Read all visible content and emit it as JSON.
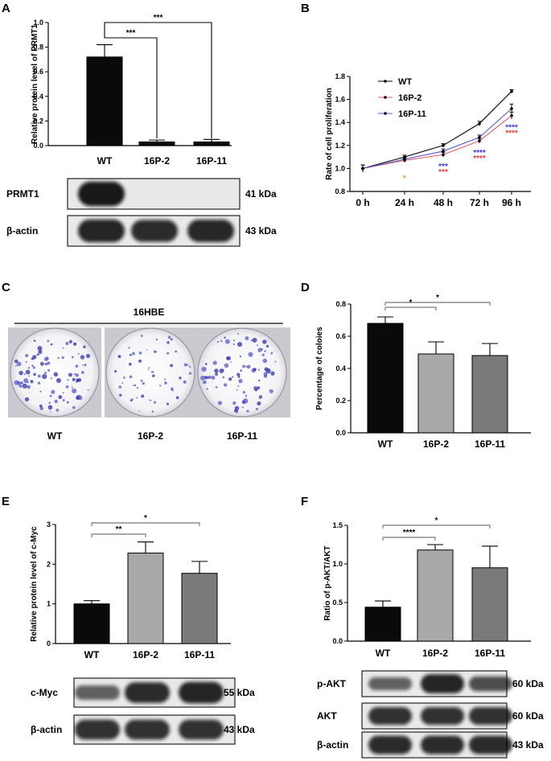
{
  "panels": {
    "A": {
      "label": "A"
    },
    "B": {
      "label": "B"
    },
    "C": {
      "label": "C",
      "title": "16HBE",
      "dishes": [
        "WT",
        "16P-2",
        "16P-11"
      ]
    },
    "D": {
      "label": "D"
    },
    "E": {
      "label": "E"
    },
    "F": {
      "label": "F"
    }
  },
  "blots": {
    "A": [
      {
        "label": "PRMT1",
        "kda": "41 kDa",
        "intensity": [
          1.0,
          0.05,
          0.03
        ]
      },
      {
        "label": "β-actin",
        "kda": "43 kDa",
        "intensity": [
          0.9,
          0.85,
          0.88
        ]
      }
    ],
    "E": [
      {
        "label": "c-Myc",
        "kda": "55 kDa",
        "intensity": [
          0.45,
          0.85,
          0.9
        ]
      },
      {
        "label": "β-actin",
        "kda": "43 kDa",
        "intensity": [
          0.8,
          0.8,
          0.8
        ]
      }
    ],
    "F": [
      {
        "label": "p-AKT",
        "kda": "60 kDa",
        "intensity": [
          0.45,
          0.9,
          0.6
        ]
      },
      {
        "label": "AKT",
        "kda": "60 kDa",
        "intensity": [
          0.8,
          0.8,
          0.8
        ]
      },
      {
        "label": "β-actin",
        "kda": "43 kDa",
        "intensity": [
          0.85,
          0.85,
          0.85
        ]
      }
    ]
  },
  "colors": {
    "black": "#0a0a0a",
    "light_gray": "#a9a9a9",
    "dark_gray": "#7a7a7a",
    "line_wt": "#000000",
    "line_16p2": "#e0606a",
    "line_16p11": "#5a5ad0",
    "star_blue": "#3a3ae0",
    "star_red": "#e04040",
    "star_orange": "#f0902a"
  },
  "chart_data": [
    {
      "panel": "A",
      "type": "bar",
      "categories": [
        "WT",
        "16P-2",
        "16P-11"
      ],
      "values": [
        0.72,
        0.03,
        0.03
      ],
      "errors": [
        0.1,
        0.015,
        0.02
      ],
      "ylabel": "Relative protein level of PRMT1",
      "ylim": [
        0,
        1.0
      ],
      "yticks": [
        "0.0",
        "0.2",
        "0.4",
        "0.6",
        "0.8",
        "1.0"
      ],
      "significance": [
        {
          "from": 0,
          "to": 1,
          "label": "***"
        },
        {
          "from": 0,
          "to": 2,
          "label": "***"
        }
      ]
    },
    {
      "panel": "B",
      "type": "line",
      "categories": [
        "0 h",
        "24 h",
        "48 h",
        "72 h",
        "96 h"
      ],
      "series": [
        {
          "name": "WT",
          "values": [
            1.0,
            1.1,
            1.2,
            1.39,
            1.67
          ],
          "errors": [
            0.03,
            0.015,
            0.015,
            0.02,
            0.015
          ]
        },
        {
          "name": "16P-2",
          "values": [
            1.0,
            1.07,
            1.12,
            1.24,
            1.46
          ],
          "errors": [
            0.03,
            0.015,
            0.02,
            0.02,
            0.03
          ]
        },
        {
          "name": "16P-11",
          "values": [
            1.0,
            1.08,
            1.15,
            1.27,
            1.52
          ],
          "errors": [
            0.03,
            0.015,
            0.02,
            0.02,
            0.04
          ]
        }
      ],
      "ylabel": "Rate of cell proliferation",
      "ylim": [
        0.8,
        1.8
      ],
      "yticks": [
        "0.8",
        "1.0",
        "1.2",
        "1.4",
        "1.6",
        "1.8"
      ],
      "annotations": [
        {
          "x": 1,
          "blue": "",
          "red": "*"
        },
        {
          "x": 2,
          "blue": "***",
          "red": "***"
        },
        {
          "x": 3,
          "blue": "****",
          "red": "****"
        },
        {
          "x": 4,
          "blue": "****",
          "red": "****"
        }
      ]
    },
    {
      "panel": "D",
      "type": "bar",
      "categories": [
        "WT",
        "16P-2",
        "16P-11"
      ],
      "values": [
        0.68,
        0.49,
        0.48
      ],
      "errors": [
        0.04,
        0.075,
        0.075
      ],
      "ylabel": "Percentage of coloies",
      "ylim": [
        0,
        0.8
      ],
      "yticks": [
        "0.0",
        "0.2",
        "0.4",
        "0.6",
        "0.8"
      ],
      "significance": [
        {
          "from": 0,
          "to": 1,
          "label": "*"
        },
        {
          "from": 0,
          "to": 2,
          "label": "*"
        }
      ]
    },
    {
      "panel": "E",
      "type": "bar",
      "categories": [
        "WT",
        "16P-2",
        "16P-11"
      ],
      "values": [
        1.0,
        2.28,
        1.77
      ],
      "errors": [
        0.08,
        0.28,
        0.3
      ],
      "ylabel": "Relative protein level of c-Myc",
      "ylim": [
        0,
        3
      ],
      "yticks": [
        "0",
        "1",
        "2",
        "3"
      ],
      "significance": [
        {
          "from": 0,
          "to": 1,
          "label": "**"
        },
        {
          "from": 0,
          "to": 2,
          "label": "*"
        }
      ]
    },
    {
      "panel": "F",
      "type": "bar",
      "categories": [
        "WT",
        "16P-2",
        "16P-11"
      ],
      "values": [
        0.44,
        1.18,
        0.95
      ],
      "errors": [
        0.08,
        0.07,
        0.28
      ],
      "ylabel": "Ratio of p-AKT/AKT",
      "ylim": [
        0,
        1.5
      ],
      "yticks": [
        "0.0",
        "0.5",
        "1.0",
        "1.5"
      ],
      "significance": [
        {
          "from": 0,
          "to": 1,
          "label": "****"
        },
        {
          "from": 0,
          "to": 2,
          "label": "*"
        }
      ]
    }
  ]
}
